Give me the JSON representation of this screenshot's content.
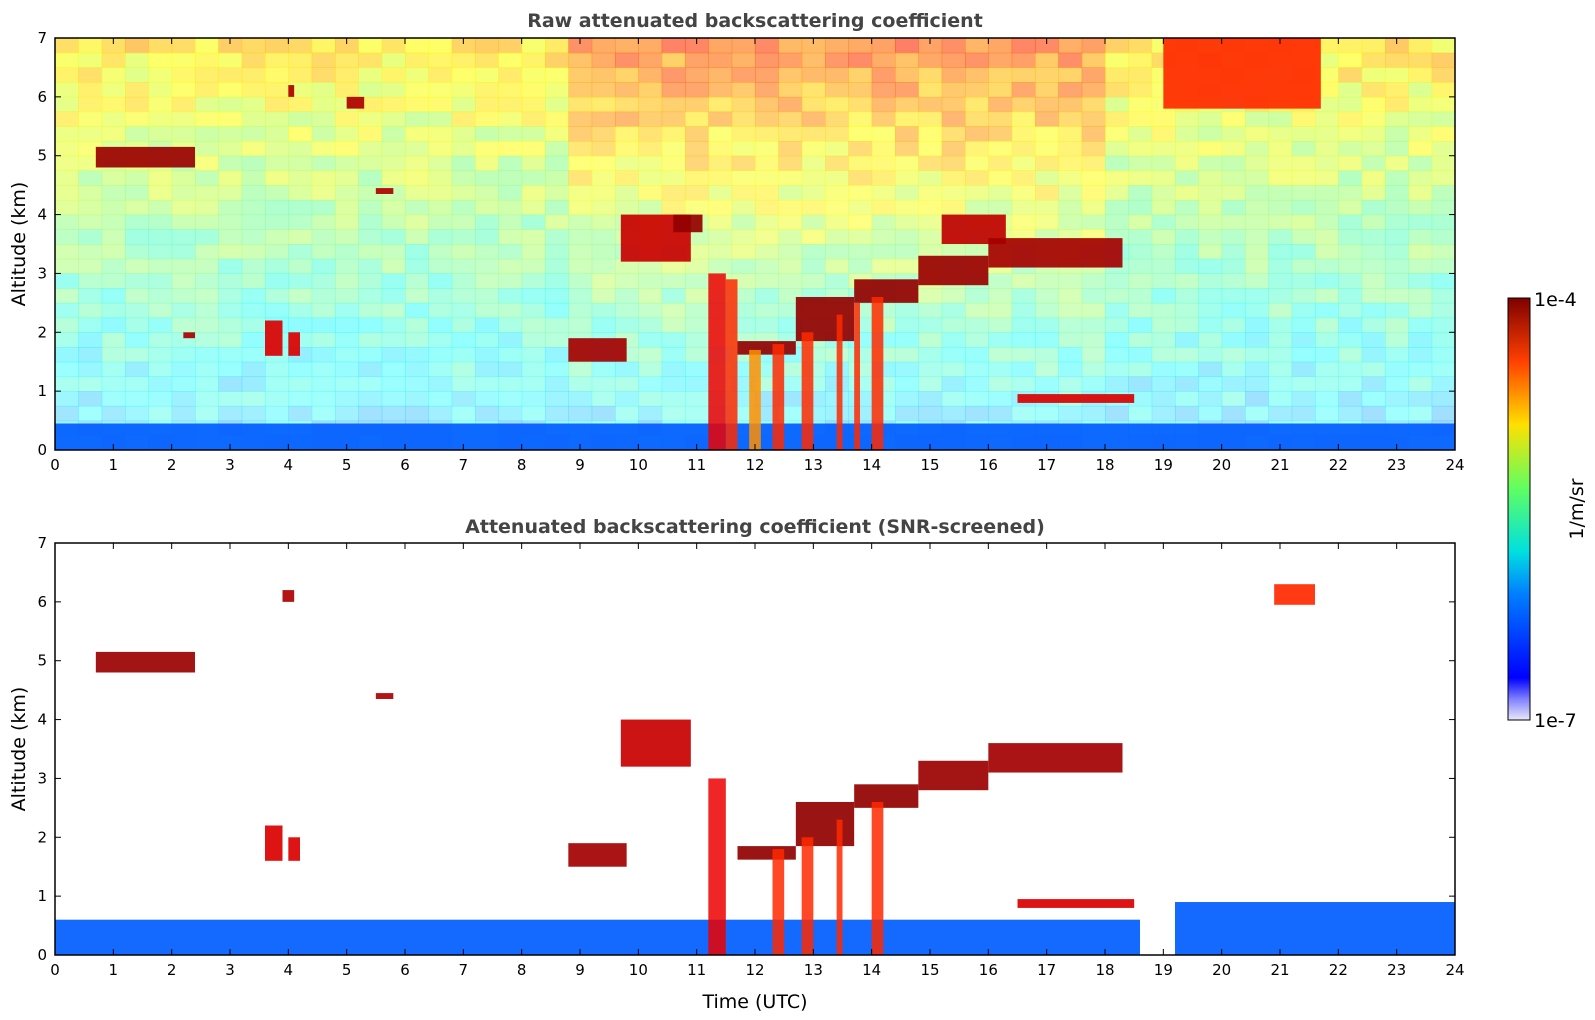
{
  "figure": {
    "xlabel": "Time (UTC)"
  },
  "chart_data": [
    {
      "type": "heatmap",
      "title": "Raw attenuated backscattering coefficient",
      "xlabel": "",
      "ylabel": "Altitude (km)",
      "xlim": [
        0,
        24
      ],
      "ylim": [
        0,
        7
      ],
      "x_ticks": [
        "0",
        "1",
        "2",
        "3",
        "4",
        "5",
        "6",
        "7",
        "8",
        "9",
        "10",
        "11",
        "12",
        "13",
        "14",
        "15",
        "16",
        "17",
        "18",
        "19",
        "20",
        "21",
        "22",
        "23",
        "24"
      ],
      "y_ticks": [
        "0",
        "1",
        "2",
        "3",
        "4",
        "5",
        "6",
        "7"
      ],
      "grid": false,
      "noise_field": true,
      "colormap": "jet",
      "features": [
        {
          "kind": "boundary_layer",
          "x0": 0,
          "x1": 24,
          "y0": 0,
          "y1": 0.45,
          "intensity": 0.2
        },
        {
          "kind": "cloud",
          "x0": 0.7,
          "x1": 2.4,
          "y0": 4.8,
          "y1": 5.15,
          "intensity": 0.97
        },
        {
          "kind": "cloud",
          "x0": 4.0,
          "x1": 4.1,
          "y0": 6.0,
          "y1": 6.2,
          "intensity": 0.95
        },
        {
          "kind": "cloud",
          "x0": 5.0,
          "x1": 5.3,
          "y0": 5.8,
          "y1": 6.0,
          "intensity": 0.95
        },
        {
          "kind": "cloud",
          "x0": 5.5,
          "x1": 5.8,
          "y0": 4.35,
          "y1": 4.45,
          "intensity": 0.95
        },
        {
          "kind": "cloud",
          "x0": 2.2,
          "x1": 2.4,
          "y0": 1.9,
          "y1": 2.0,
          "intensity": 0.95
        },
        {
          "kind": "cloud",
          "x0": 3.6,
          "x1": 3.9,
          "y0": 1.6,
          "y1": 2.2,
          "intensity": 0.9
        },
        {
          "kind": "cloud",
          "x0": 4.0,
          "x1": 4.2,
          "y0": 1.6,
          "y1": 2.0,
          "intensity": 0.9
        },
        {
          "kind": "cloud",
          "x0": 8.8,
          "x1": 9.8,
          "y0": 1.5,
          "y1": 1.9,
          "intensity": 0.96
        },
        {
          "kind": "cloud",
          "x0": 9.7,
          "x1": 10.9,
          "y0": 3.2,
          "y1": 4.0,
          "intensity": 0.92
        },
        {
          "kind": "cloud",
          "x0": 10.6,
          "x1": 11.1,
          "y0": 3.7,
          "y1": 4.0,
          "intensity": 0.98
        },
        {
          "kind": "layer",
          "x0": 11.7,
          "x1": 12.7,
          "y0": 1.62,
          "y1": 1.85,
          "intensity": 0.98
        },
        {
          "kind": "layer",
          "x0": 12.7,
          "x1": 13.7,
          "y0": 1.85,
          "y1": 2.6,
          "intensity": 0.98
        },
        {
          "kind": "layer",
          "x0": 13.7,
          "x1": 14.8,
          "y0": 2.5,
          "y1": 2.9,
          "intensity": 0.98
        },
        {
          "kind": "layer",
          "x0": 14.8,
          "x1": 16.0,
          "y0": 2.8,
          "y1": 3.3,
          "intensity": 0.97
        },
        {
          "kind": "layer",
          "x0": 15.2,
          "x1": 16.3,
          "y0": 3.5,
          "y1": 4.0,
          "intensity": 0.93
        },
        {
          "kind": "layer",
          "x0": 16.0,
          "x1": 18.3,
          "y0": 3.1,
          "y1": 3.6,
          "intensity": 0.96
        },
        {
          "kind": "layer",
          "x0": 16.5,
          "x1": 18.5,
          "y0": 0.8,
          "y1": 0.95,
          "intensity": 0.9
        },
        {
          "kind": "precipitation",
          "x0": 11.2,
          "x1": 11.5,
          "y0": 0,
          "y1": 3.0,
          "intensity": 0.88
        },
        {
          "kind": "precipitation",
          "x0": 11.5,
          "x1": 11.7,
          "y0": 0,
          "y1": 2.9,
          "intensity": 0.82
        },
        {
          "kind": "precipitation",
          "x0": 11.9,
          "x1": 12.1,
          "y0": 0,
          "y1": 1.7,
          "intensity": 0.72
        },
        {
          "kind": "precipitation",
          "x0": 12.3,
          "x1": 12.5,
          "y0": 0,
          "y1": 1.8,
          "intensity": 0.82
        },
        {
          "kind": "precipitation",
          "x0": 12.8,
          "x1": 13.0,
          "y0": 0,
          "y1": 2.0,
          "intensity": 0.82
        },
        {
          "kind": "precipitation",
          "x0": 13.4,
          "x1": 13.5,
          "y0": 0,
          "y1": 2.3,
          "intensity": 0.82
        },
        {
          "kind": "precipitation",
          "x0": 13.7,
          "x1": 13.8,
          "y0": 0,
          "y1": 2.5,
          "intensity": 0.82
        },
        {
          "kind": "precipitation",
          "x0": 14.0,
          "x1": 14.2,
          "y0": 0,
          "y1": 2.6,
          "intensity": 0.82
        },
        {
          "kind": "cloud",
          "x0": 19.0,
          "x1": 21.7,
          "y0": 5.8,
          "y1": 7.0,
          "intensity": 0.82
        }
      ]
    },
    {
      "type": "heatmap",
      "title": "Attenuated backscattering coefficient (SNR-screened)",
      "xlabel": "Time (UTC)",
      "ylabel": "Altitude (km)",
      "xlim": [
        0,
        24
      ],
      "ylim": [
        0,
        7
      ],
      "x_ticks": [
        "0",
        "1",
        "2",
        "3",
        "4",
        "5",
        "6",
        "7",
        "8",
        "9",
        "10",
        "11",
        "12",
        "13",
        "14",
        "15",
        "16",
        "17",
        "18",
        "19",
        "20",
        "21",
        "22",
        "23",
        "24"
      ],
      "y_ticks": [
        "0",
        "1",
        "2",
        "3",
        "4",
        "5",
        "6",
        "7"
      ],
      "grid": false,
      "noise_field": false,
      "colormap": "jet",
      "features": [
        {
          "kind": "boundary_layer",
          "x0": 0,
          "x1": 18.6,
          "y0": 0,
          "y1": 0.6,
          "intensity": 0.2
        },
        {
          "kind": "boundary_layer",
          "x0": 19.2,
          "x1": 24,
          "y0": 0,
          "y1": 0.9,
          "intensity": 0.2
        },
        {
          "kind": "cloud",
          "x0": 0.7,
          "x1": 2.4,
          "y0": 4.8,
          "y1": 5.15,
          "intensity": 0.97
        },
        {
          "kind": "cloud",
          "x0": 3.9,
          "x1": 4.1,
          "y0": 6.0,
          "y1": 6.2,
          "intensity": 0.95
        },
        {
          "kind": "cloud",
          "x0": 5.5,
          "x1": 5.8,
          "y0": 4.35,
          "y1": 4.45,
          "intensity": 0.95
        },
        {
          "kind": "cloud",
          "x0": 3.6,
          "x1": 3.9,
          "y0": 1.6,
          "y1": 2.2,
          "intensity": 0.9
        },
        {
          "kind": "cloud",
          "x0": 4.0,
          "x1": 4.2,
          "y0": 1.6,
          "y1": 2.0,
          "intensity": 0.9
        },
        {
          "kind": "cloud",
          "x0": 8.8,
          "x1": 9.8,
          "y0": 1.5,
          "y1": 1.9,
          "intensity": 0.96
        },
        {
          "kind": "cloud",
          "x0": 9.7,
          "x1": 10.9,
          "y0": 3.2,
          "y1": 4.0,
          "intensity": 0.92
        },
        {
          "kind": "layer",
          "x0": 11.7,
          "x1": 12.7,
          "y0": 1.62,
          "y1": 1.85,
          "intensity": 0.98
        },
        {
          "kind": "layer",
          "x0": 12.7,
          "x1": 13.7,
          "y0": 1.85,
          "y1": 2.6,
          "intensity": 0.98
        },
        {
          "kind": "layer",
          "x0": 13.7,
          "x1": 14.8,
          "y0": 2.5,
          "y1": 2.9,
          "intensity": 0.98
        },
        {
          "kind": "layer",
          "x0": 14.8,
          "x1": 16.0,
          "y0": 2.8,
          "y1": 3.3,
          "intensity": 0.97
        },
        {
          "kind": "layer",
          "x0": 16.0,
          "x1": 18.3,
          "y0": 3.1,
          "y1": 3.6,
          "intensity": 0.96
        },
        {
          "kind": "layer",
          "x0": 16.5,
          "x1": 18.5,
          "y0": 0.8,
          "y1": 0.95,
          "intensity": 0.9
        },
        {
          "kind": "precipitation",
          "x0": 11.2,
          "x1": 11.5,
          "y0": 0,
          "y1": 3.0,
          "intensity": 0.88
        },
        {
          "kind": "precipitation",
          "x0": 12.3,
          "x1": 12.5,
          "y0": 0,
          "y1": 1.8,
          "intensity": 0.82
        },
        {
          "kind": "precipitation",
          "x0": 12.8,
          "x1": 13.0,
          "y0": 0,
          "y1": 2.0,
          "intensity": 0.82
        },
        {
          "kind": "precipitation",
          "x0": 13.4,
          "x1": 13.5,
          "y0": 0,
          "y1": 2.3,
          "intensity": 0.82
        },
        {
          "kind": "precipitation",
          "x0": 14.0,
          "x1": 14.2,
          "y0": 0,
          "y1": 2.6,
          "intensity": 0.82
        },
        {
          "kind": "cloud",
          "x0": 20.9,
          "x1": 21.6,
          "y0": 5.95,
          "y1": 6.3,
          "intensity": 0.82
        }
      ]
    }
  ],
  "colorbar": {
    "label": "1/m/sr",
    "max_label": "1e-4",
    "min_label": "1e-7",
    "colormap": "jet",
    "low_color": "#e8e8f8"
  }
}
